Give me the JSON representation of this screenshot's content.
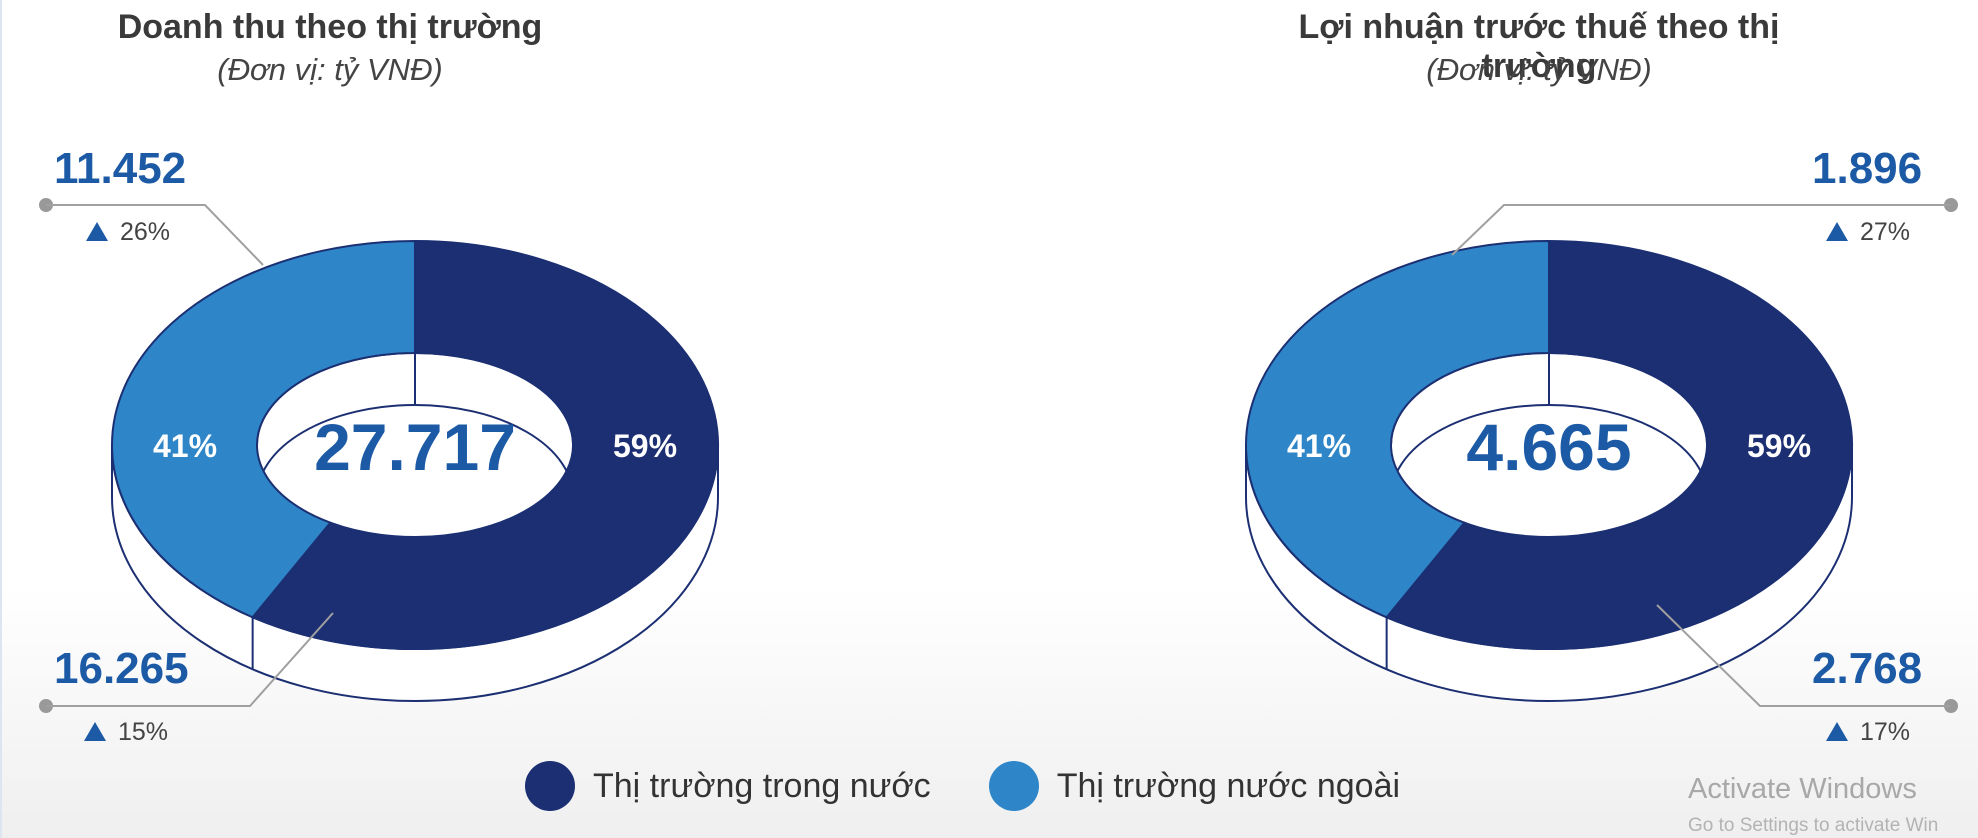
{
  "colors": {
    "domestic": "#1b2f72",
    "foreign": "#2e86c8",
    "accent": "#1c5aa6"
  },
  "legend": [
    {
      "label": "Thị trường trong nước",
      "color": "#1b2f72"
    },
    {
      "label": "Thị trường nước ngoài",
      "color": "#2e86c8"
    }
  ],
  "watermark": {
    "line1": "Activate Windows",
    "line2": "Go to Settings to activate Win"
  },
  "chart_data": [
    {
      "type": "pie",
      "title": "Doanh thu theo thị trường",
      "subtitle": "(Đơn vị: tỷ VNĐ)",
      "total": "27.717",
      "slices": [
        {
          "name": "Thị trường trong nước",
          "percent": 59,
          "percent_label": "59%",
          "value": "16.265",
          "growth": "15%"
        },
        {
          "name": "Thị trường nước ngoài",
          "percent": 41,
          "percent_label": "41%",
          "value": "11.452",
          "growth": "26%"
        }
      ]
    },
    {
      "type": "pie",
      "title": "Lợi nhuận trước thuế theo thị trường",
      "subtitle": "(Đơn vị: tỷ VNĐ)",
      "total": "4.665",
      "slices": [
        {
          "name": "Thị trường trong nước",
          "percent": 59,
          "percent_label": "59%",
          "value": "2.768",
          "growth": "17%"
        },
        {
          "name": "Thị trường nước ngoài",
          "percent": 41,
          "percent_label": "41%",
          "value": "1.896",
          "growth": "27%"
        }
      ]
    }
  ]
}
